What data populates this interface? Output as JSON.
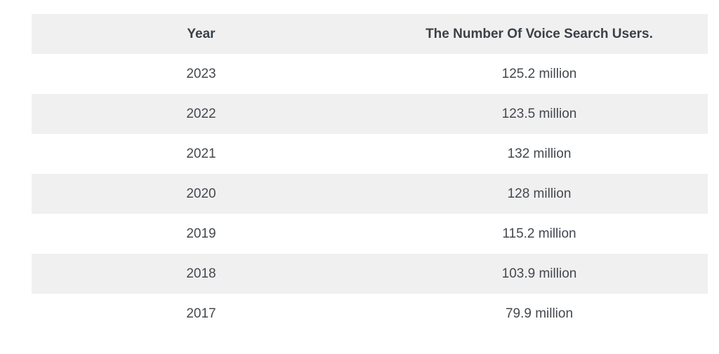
{
  "table": {
    "headers": [
      "Year",
      "The Number Of Voice Search Users."
    ],
    "rows": [
      [
        "2023",
        "125.2 million"
      ],
      [
        "2022",
        "123.5 million"
      ],
      [
        "2021",
        "132 million"
      ],
      [
        "2020",
        "128 million"
      ],
      [
        "2019",
        "115.2 million"
      ],
      [
        "2018",
        "103.9 million"
      ],
      [
        "2017",
        "79.9 million"
      ]
    ]
  }
}
